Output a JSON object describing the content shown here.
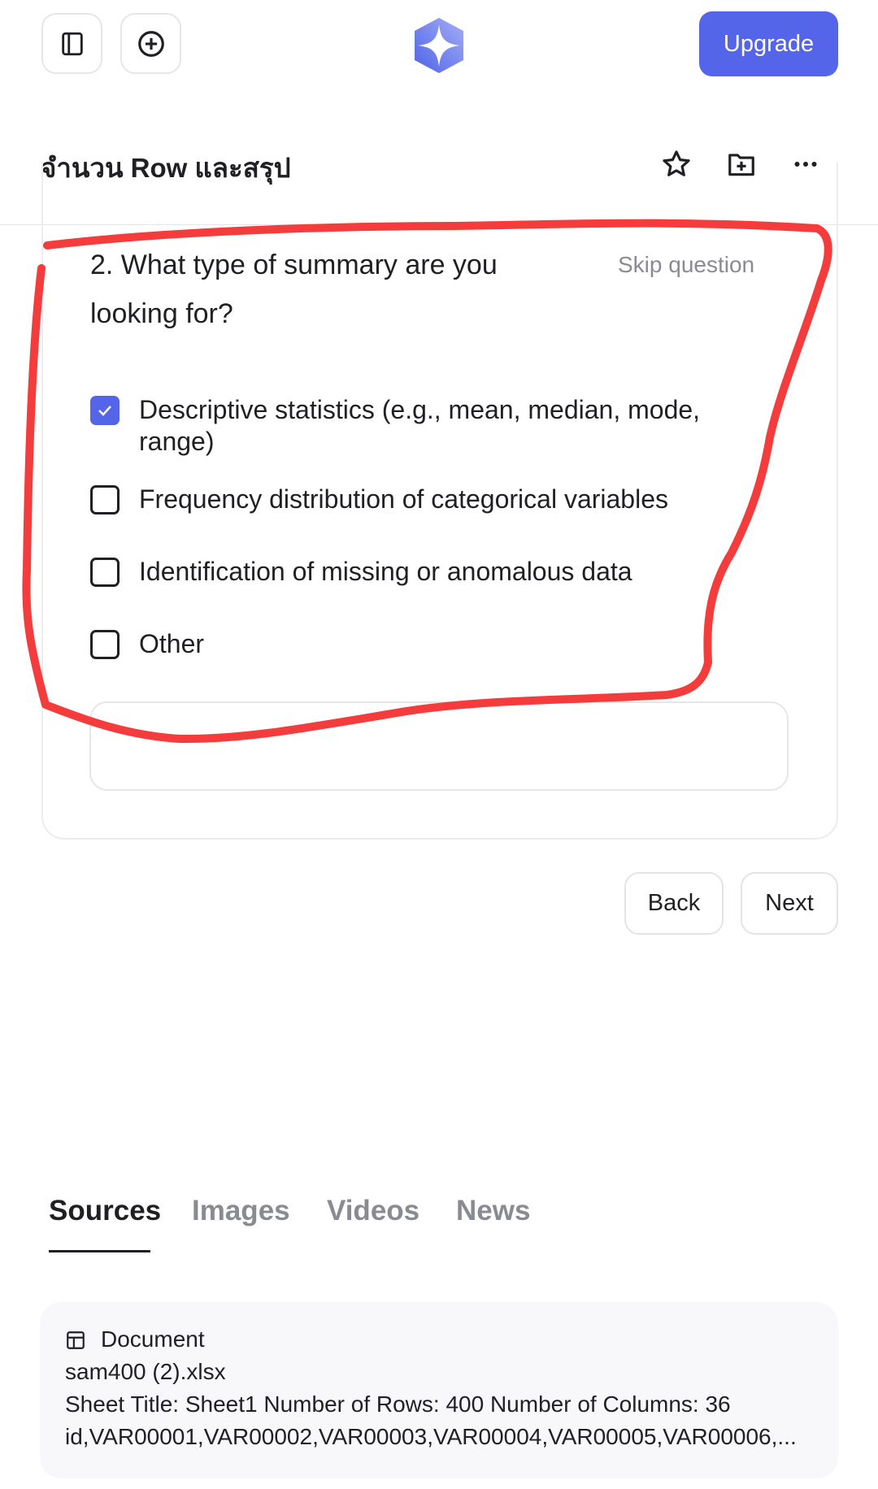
{
  "header": {
    "sidebar_toggle_icon": "sidebar-icon",
    "new_chat_icon": "plus-circle-icon",
    "logo_icon": "sparkle-logo",
    "upgrade_label": "Upgrade",
    "accent_color": "#5465ea"
  },
  "thread": {
    "title": "จำนวน Row และสรุป",
    "actions": [
      "star-icon",
      "folder-plus-icon",
      "more-icon"
    ]
  },
  "question": {
    "text": "2. What type of summary are you looking for?",
    "skip_label": "Skip question",
    "options": [
      {
        "label": "Descriptive statistics (e.g., mean, median, mode, range)",
        "checked": true
      },
      {
        "label": "Frequency distribution of categorical variables",
        "checked": false
      },
      {
        "label": "Identification of missing or anomalous data",
        "checked": false
      },
      {
        "label": "Other",
        "checked": false
      }
    ],
    "other_input_value": "",
    "back_label": "Back",
    "next_label": "Next"
  },
  "tabs": {
    "items": [
      "Sources",
      "Images",
      "Videos",
      "News"
    ],
    "active": "Sources"
  },
  "source": {
    "type_label": "Document",
    "filename": "sam400 (2).xlsx",
    "summary": "Sheet Title: Sheet1 Number of Rows: 400 Number of Columns: 36",
    "columns": "id,VAR00001,VAR00002,VAR00003,VAR00004,VAR00005,VAR00006,..."
  },
  "annotation": {
    "color": "#f53c3c"
  }
}
